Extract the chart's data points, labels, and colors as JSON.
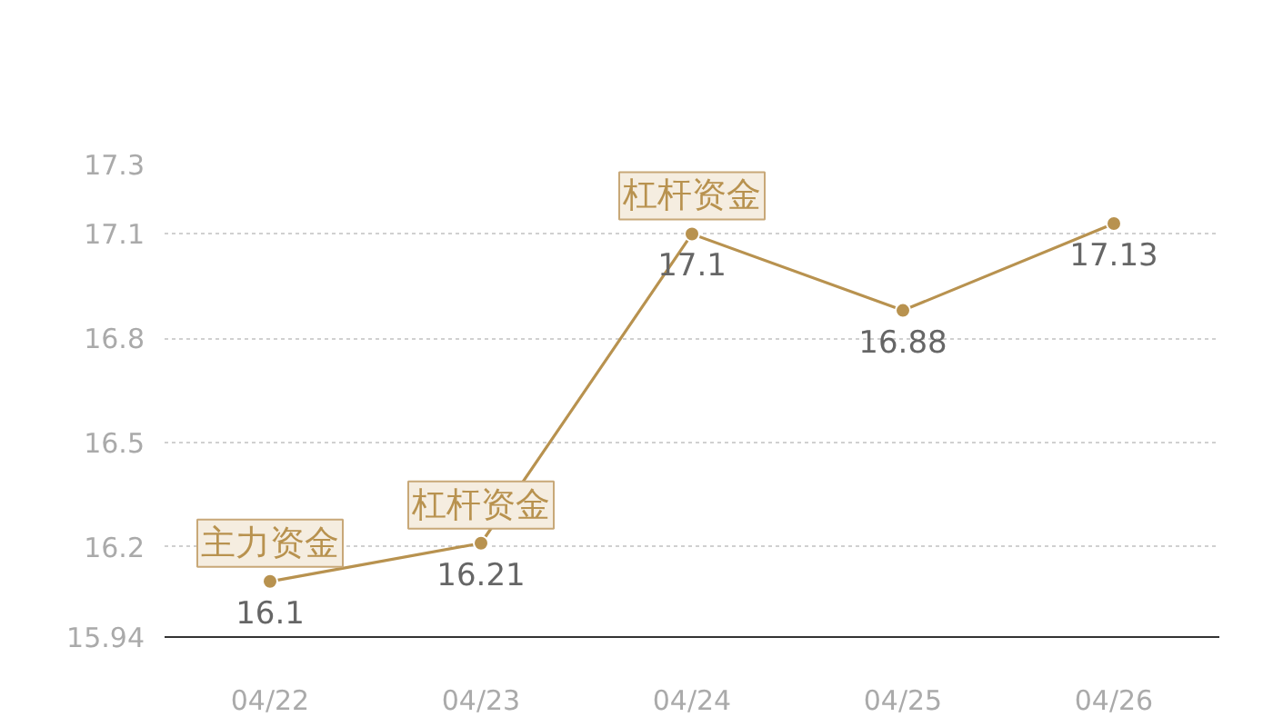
{
  "chart_data": {
    "type": "line",
    "categories": [
      "04/22",
      "04/23",
      "04/24",
      "04/25",
      "04/26"
    ],
    "series": [
      {
        "color": "#b8924f",
        "values": [
          16.1,
          16.21,
          17.1,
          16.88,
          17.13
        ]
      }
    ],
    "ylim": [
      15.94,
      17.3
    ],
    "yticks": [
      15.94,
      16.2,
      16.5,
      16.8,
      17.1,
      17.3
    ],
    "grid": "y",
    "marker": "circle",
    "line_style": "solid",
    "data_labels": true,
    "annotations": [
      {
        "text": "主力资金",
        "x": "04/22",
        "y": 16.1
      },
      {
        "text": "杠杆资金",
        "x": "04/23",
        "y": 16.21
      },
      {
        "text": "杠杆资金",
        "x": "04/24",
        "y": 17.1
      }
    ]
  }
}
